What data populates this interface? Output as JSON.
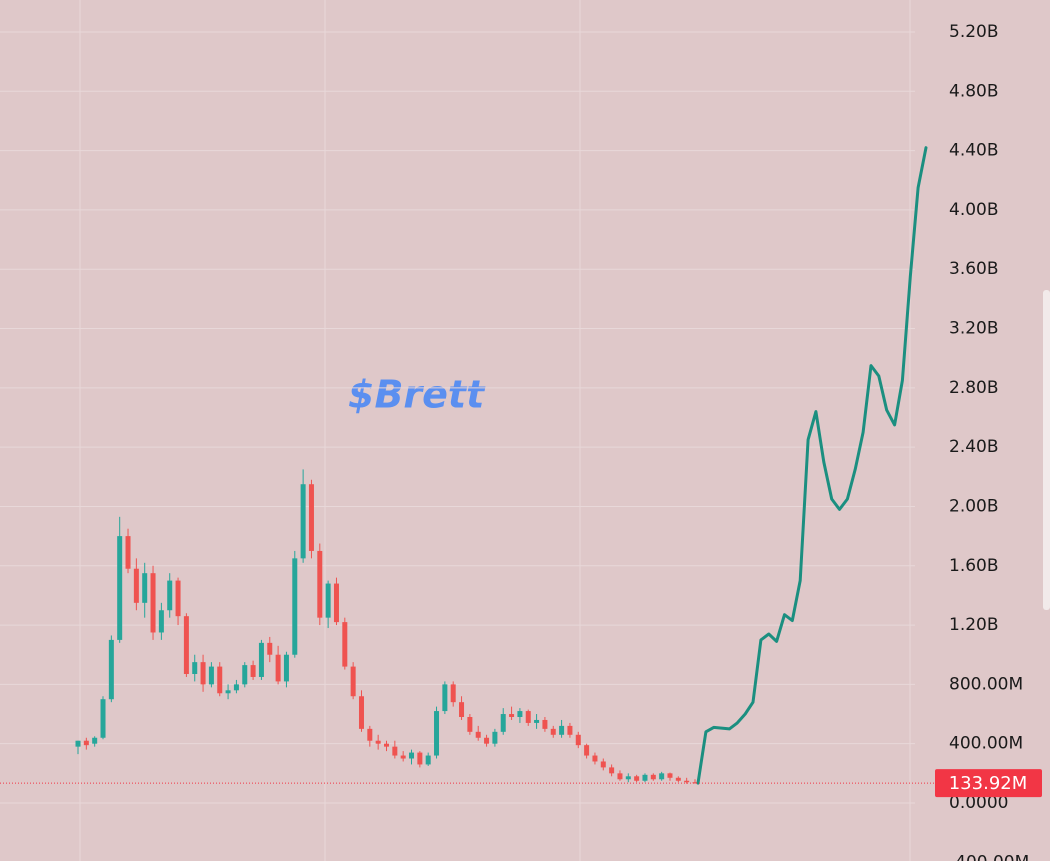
{
  "chart_data": {
    "type": "candlestick",
    "title": "$Brett",
    "up_color": "#26a69a",
    "down_color": "#ef5350",
    "open": [
      380000000,
      420000000,
      400000000,
      440000000,
      700000000,
      1100000000,
      1800000000,
      1580000000,
      1350000000,
      1550000000,
      1150000000,
      1300000000,
      1500000000,
      1260000000,
      870000000,
      950000000,
      800000000,
      920000000,
      740000000,
      760000000,
      800000000,
      930000000,
      850000000,
      1080000000,
      1000000000,
      820000000,
      1000000000,
      1650000000,
      2150000000,
      1700000000,
      1250000000,
      1480000000,
      1220000000,
      920000000,
      720000000,
      500000000,
      420000000,
      400000000,
      380000000,
      320000000,
      300000000,
      340000000,
      260000000,
      320000000,
      620000000,
      800000000,
      680000000,
      580000000,
      480000000,
      440000000,
      400000000,
      480000000,
      600000000,
      580000000,
      620000000,
      540000000,
      560000000,
      500000000,
      460000000,
      520000000,
      460000000,
      390000000,
      320000000,
      280000000,
      240000000,
      200000000,
      160000000,
      180000000,
      150000000,
      190000000,
      160000000,
      200000000,
      170000000,
      150000000,
      140000000
    ],
    "high": [
      420000000,
      440000000,
      450000000,
      720000000,
      1130000000,
      1930000000,
      1850000000,
      1650000000,
      1620000000,
      1600000000,
      1350000000,
      1550000000,
      1520000000,
      1280000000,
      1000000000,
      1000000000,
      950000000,
      950000000,
      800000000,
      830000000,
      950000000,
      960000000,
      1100000000,
      1120000000,
      1060000000,
      1020000000,
      1700000000,
      2250000000,
      2180000000,
      1750000000,
      1500000000,
      1520000000,
      1250000000,
      950000000,
      760000000,
      520000000,
      460000000,
      420000000,
      420000000,
      350000000,
      360000000,
      350000000,
      340000000,
      650000000,
      820000000,
      820000000,
      720000000,
      600000000,
      520000000,
      460000000,
      500000000,
      640000000,
      650000000,
      640000000,
      630000000,
      600000000,
      580000000,
      520000000,
      560000000,
      540000000,
      480000000,
      400000000,
      340000000,
      300000000,
      260000000,
      220000000,
      200000000,
      190000000,
      200000000,
      200000000,
      210000000,
      205000000,
      180000000,
      170000000,
      160000000
    ],
    "low": [
      330000000,
      360000000,
      380000000,
      430000000,
      680000000,
      1080000000,
      1550000000,
      1300000000,
      1250000000,
      1100000000,
      1100000000,
      1250000000,
      1200000000,
      850000000,
      820000000,
      750000000,
      780000000,
      720000000,
      700000000,
      740000000,
      780000000,
      830000000,
      830000000,
      950000000,
      800000000,
      780000000,
      980000000,
      1620000000,
      1650000000,
      1200000000,
      1180000000,
      1200000000,
      900000000,
      700000000,
      480000000,
      380000000,
      360000000,
      350000000,
      300000000,
      280000000,
      260000000,
      240000000,
      250000000,
      300000000,
      600000000,
      650000000,
      560000000,
      460000000,
      420000000,
      380000000,
      380000000,
      460000000,
      560000000,
      540000000,
      520000000,
      500000000,
      480000000,
      440000000,
      440000000,
      440000000,
      370000000,
      300000000,
      260000000,
      220000000,
      180000000,
      150000000,
      140000000,
      140000000,
      140000000,
      150000000,
      150000000,
      150000000,
      140000000,
      130000000,
      130000000
    ],
    "close": [
      420000000,
      390000000,
      440000000,
      700000000,
      1100000000,
      1800000000,
      1580000000,
      1350000000,
      1550000000,
      1150000000,
      1300000000,
      1500000000,
      1260000000,
      870000000,
      950000000,
      800000000,
      920000000,
      740000000,
      760000000,
      800000000,
      930000000,
      850000000,
      1080000000,
      1000000000,
      820000000,
      1000000000,
      1650000000,
      2150000000,
      1700000000,
      1250000000,
      1480000000,
      1220000000,
      920000000,
      720000000,
      500000000,
      420000000,
      400000000,
      380000000,
      320000000,
      300000000,
      340000000,
      260000000,
      320000000,
      620000000,
      800000000,
      680000000,
      580000000,
      480000000,
      440000000,
      400000000,
      480000000,
      600000000,
      580000000,
      620000000,
      540000000,
      560000000,
      500000000,
      460000000,
      520000000,
      460000000,
      390000000,
      320000000,
      280000000,
      240000000,
      200000000,
      160000000,
      180000000,
      150000000,
      190000000,
      160000000,
      200000000,
      170000000,
      150000000,
      140000000,
      133920000
    ],
    "projection": {
      "color": "#1b8f80",
      "values": [
        134000000,
        480000000,
        510000000,
        505000000,
        500000000,
        540000000,
        600000000,
        680000000,
        1100000000,
        1140000000,
        1090000000,
        1270000000,
        1230000000,
        1500000000,
        2450000000,
        2640000000,
        2300000000,
        2050000000,
        1980000000,
        2050000000,
        2250000000,
        2500000000,
        2950000000,
        2880000000,
        2650000000,
        2550000000,
        2850000000,
        3550000000,
        4150000000,
        4420000000
      ]
    },
    "last_price": {
      "value": 133920000,
      "label": "133.92M"
    },
    "last_price_color": "#f23645",
    "ylim": [
      -400000000,
      5400000000
    ],
    "yticks": [
      {
        "value": -400000000,
        "label": "-400.00M"
      },
      {
        "value": 0,
        "label": "0.0000"
      },
      {
        "value": 400000000,
        "label": "400.00M"
      },
      {
        "value": 800000000,
        "label": "800.00M"
      },
      {
        "value": 1200000000,
        "label": "1.20B"
      },
      {
        "value": 1600000000,
        "label": "1.60B"
      },
      {
        "value": 2000000000,
        "label": "2.00B"
      },
      {
        "value": 2400000000,
        "label": "2.40B"
      },
      {
        "value": 2800000000,
        "label": "2.80B"
      },
      {
        "value": 3200000000,
        "label": "3.20B"
      },
      {
        "value": 3600000000,
        "label": "3.60B"
      },
      {
        "value": 4000000000,
        "label": "4.00B"
      },
      {
        "value": 4400000000,
        "label": "4.40B"
      },
      {
        "value": 4800000000,
        "label": "4.80B"
      },
      {
        "value": 5200000000,
        "label": "5.20B"
      }
    ],
    "grid": true
  }
}
